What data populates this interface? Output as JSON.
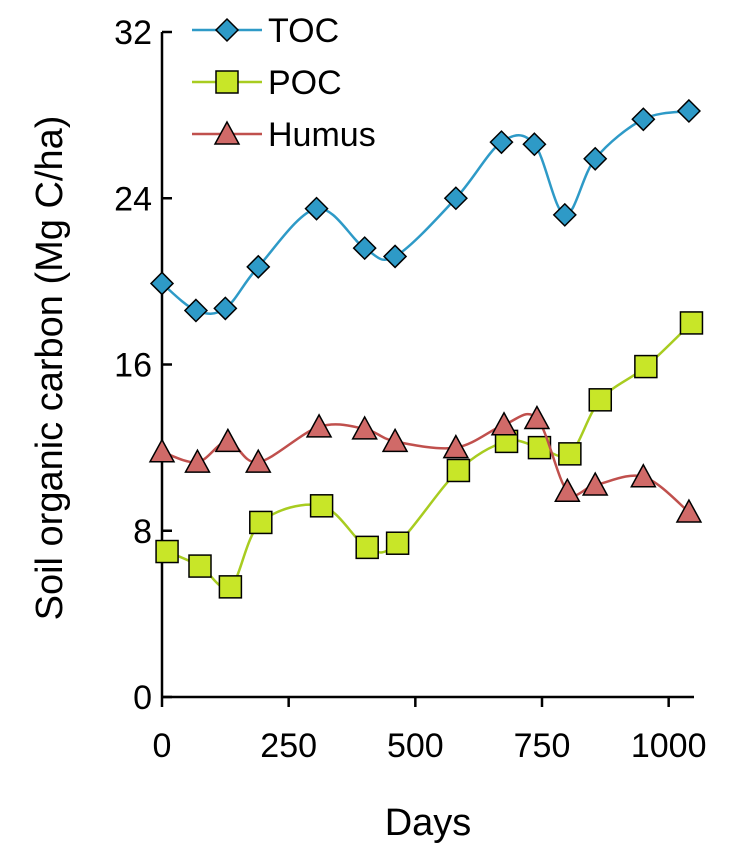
{
  "chart_data": {
    "type": "line",
    "xlabel": "Days",
    "ylabel": "Soil organic carbon (Mg C/ha)",
    "xlim": [
      0,
      1050
    ],
    "ylim": [
      0,
      32
    ],
    "xticks": [
      0,
      250,
      500,
      750,
      1000
    ],
    "yticks": [
      0,
      8,
      16,
      24,
      32
    ],
    "grid": false,
    "legend_position": "top-left",
    "series": [
      {
        "name": "TOC",
        "marker": "diamond",
        "line_color": "#2E9AC7",
        "marker_color": "#2E9AC7",
        "x": [
          0,
          67,
          125,
          190,
          305,
          400,
          460,
          580,
          670,
          735,
          795,
          855,
          950,
          1040
        ],
        "y": [
          19.9,
          18.6,
          18.7,
          20.7,
          23.5,
          21.6,
          21.2,
          24.0,
          26.7,
          26.6,
          23.2,
          25.9,
          27.8,
          28.2
        ]
      },
      {
        "name": "POC",
        "marker": "square",
        "line_color": "#A8CC20",
        "marker_color": "#C8E628",
        "x": [
          10,
          75,
          135,
          195,
          315,
          405,
          465,
          585,
          680,
          745,
          805,
          865,
          955,
          1045
        ],
        "y": [
          7.0,
          6.3,
          5.3,
          8.4,
          9.2,
          7.2,
          7.4,
          10.9,
          12.3,
          12.0,
          11.7,
          14.3,
          15.9,
          18.0
        ]
      },
      {
        "name": "Humus",
        "marker": "triangle",
        "line_color": "#C0504D",
        "marker_color": "#D06A68",
        "x": [
          0,
          70,
          130,
          190,
          310,
          400,
          460,
          580,
          675,
          740,
          800,
          855,
          950,
          1040
        ],
        "y": [
          11.8,
          11.3,
          12.3,
          11.3,
          13.0,
          12.9,
          12.3,
          12.0,
          13.1,
          13.4,
          9.9,
          10.2,
          10.6,
          8.9
        ]
      }
    ]
  }
}
